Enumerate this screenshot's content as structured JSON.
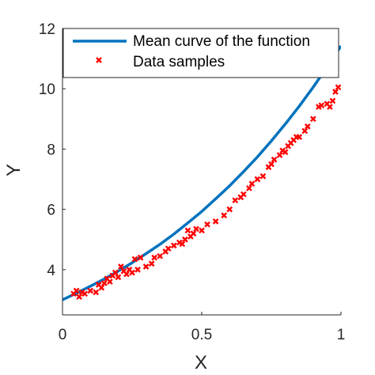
{
  "chart_data": {
    "type": "scatter",
    "xlabel": "X",
    "ylabel": "Y",
    "xlim": [
      0,
      1
    ],
    "ylim": [
      2.5,
      12
    ],
    "xticks": [
      0,
      0.5,
      1
    ],
    "xtick_labels": [
      "0",
      "0.5",
      "1"
    ],
    "yticks": [
      4,
      6,
      8,
      10,
      12
    ],
    "ytick_labels": [
      "4",
      "6",
      "8",
      "10",
      "12"
    ],
    "grid": false,
    "legend_position": "top",
    "series": [
      {
        "name": "Mean curve of the function",
        "kind": "line",
        "color": "#0072BD",
        "x": [
          0,
          0.05,
          0.1,
          0.15,
          0.2,
          0.25,
          0.3,
          0.35,
          0.4,
          0.45,
          0.5,
          0.55,
          0.6,
          0.65,
          0.7,
          0.75,
          0.8,
          0.85,
          0.9,
          0.95,
          1.0
        ],
        "y": [
          3.0,
          3.22,
          3.45,
          3.69,
          3.95,
          4.23,
          4.53,
          4.84,
          5.18,
          5.55,
          5.93,
          6.35,
          6.78,
          7.25,
          7.74,
          8.27,
          8.83,
          9.42,
          10.05,
          10.72,
          11.42
        ]
      },
      {
        "name": "Data samples",
        "kind": "scatter",
        "color": "#FF0000",
        "marker": "x",
        "x": [
          0.04,
          0.05,
          0.06,
          0.07,
          0.08,
          0.1,
          0.12,
          0.13,
          0.14,
          0.15,
          0.16,
          0.17,
          0.18,
          0.19,
          0.2,
          0.21,
          0.22,
          0.23,
          0.24,
          0.25,
          0.26,
          0.27,
          0.28,
          0.3,
          0.32,
          0.33,
          0.35,
          0.37,
          0.38,
          0.4,
          0.42,
          0.43,
          0.44,
          0.45,
          0.46,
          0.47,
          0.48,
          0.5,
          0.52,
          0.55,
          0.58,
          0.6,
          0.62,
          0.64,
          0.65,
          0.67,
          0.68,
          0.7,
          0.72,
          0.74,
          0.75,
          0.76,
          0.78,
          0.79,
          0.8,
          0.81,
          0.82,
          0.83,
          0.84,
          0.85,
          0.87,
          0.88,
          0.9,
          0.92,
          0.93,
          0.95,
          0.96,
          0.97,
          0.98,
          0.99
        ],
        "y": [
          3.2,
          3.3,
          3.1,
          3.25,
          3.2,
          3.3,
          3.25,
          3.5,
          3.4,
          3.55,
          3.7,
          3.6,
          3.8,
          3.9,
          3.75,
          4.1,
          3.95,
          3.85,
          4.0,
          3.9,
          4.35,
          4.0,
          4.4,
          4.1,
          4.2,
          4.4,
          4.45,
          4.6,
          4.7,
          4.8,
          4.9,
          4.85,
          5.0,
          5.3,
          5.1,
          5.2,
          5.35,
          5.3,
          5.5,
          5.6,
          5.8,
          6.0,
          6.3,
          6.4,
          6.5,
          6.7,
          6.85,
          7.0,
          7.1,
          7.4,
          7.5,
          7.65,
          7.8,
          7.95,
          7.9,
          8.1,
          8.2,
          8.3,
          8.4,
          8.4,
          8.6,
          8.75,
          9.0,
          9.4,
          9.45,
          9.5,
          9.4,
          9.6,
          9.9,
          10.05
        ]
      }
    ]
  }
}
